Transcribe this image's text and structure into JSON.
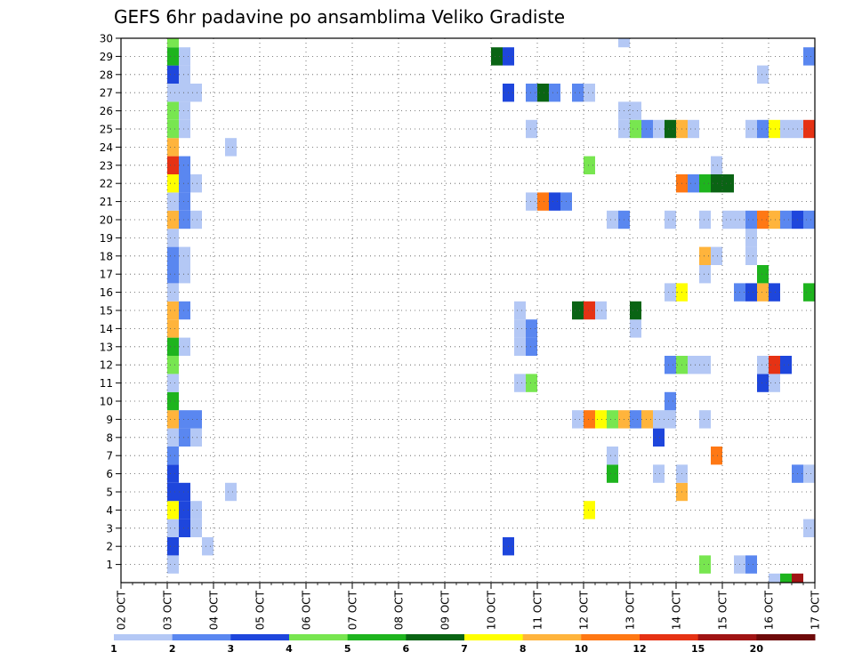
{
  "chart_data": {
    "type": "heatmap",
    "title": "GEFS 6hr padavine po ansamblima Veliko Gradiste",
    "x_ticks": [
      "02 OCT",
      "03 OCT",
      "04 OCT",
      "05 OCT",
      "06 OCT",
      "07 OCT",
      "08 OCT",
      "09 OCT",
      "10 OCT",
      "11 OCT",
      "12 OCT",
      "13 OCT",
      "14 OCT",
      "15 OCT",
      "16 OCT",
      "17 OCT"
    ],
    "y_ticks": [
      "1",
      "2",
      "3",
      "4",
      "5",
      "6",
      "7",
      "8",
      "9",
      "10",
      "11",
      "12",
      "13",
      "14",
      "15",
      "16",
      "17",
      "18",
      "19",
      "20",
      "21",
      "22",
      "23",
      "24",
      "25",
      "26",
      "27",
      "28",
      "29",
      "30"
    ],
    "xlim": [
      "02 OCT 00Z",
      "17 OCT 00Z"
    ],
    "ylim": [
      0,
      30
    ],
    "grid": true,
    "colorbar": {
      "labels": [
        "1",
        "2",
        "3",
        "4",
        "5",
        "6",
        "7",
        "8",
        "10",
        "12",
        "15",
        "20"
      ],
      "colors": [
        "#b4c8f5",
        "#5a87f0",
        "#1e46dc",
        "#78e650",
        "#1eb41e",
        "#0a6414",
        "#ffff00",
        "#ffb43c",
        "#ff7814",
        "#e63214",
        "#a01414",
        "#6e0a0a"
      ]
    },
    "cells": [
      {
        "day": "03",
        "h": 0,
        "m": 0,
        "c": 0
      },
      {
        "day": "03",
        "h": 0,
        "m": 1,
        "c": 2
      },
      {
        "day": "03",
        "h": 0,
        "m": 2,
        "c": 0
      },
      {
        "day": "03",
        "h": 0,
        "m": 3,
        "c": 6
      },
      {
        "day": "03",
        "h": 0,
        "m": 4,
        "c": 2
      },
      {
        "day": "03",
        "h": 0,
        "m": 5,
        "c": 2
      },
      {
        "day": "03",
        "h": 0,
        "m": 6,
        "c": 1
      },
      {
        "day": "03",
        "h": 0,
        "m": 7,
        "c": 0
      },
      {
        "day": "03",
        "h": 0,
        "m": 8,
        "c": 7
      },
      {
        "day": "03",
        "h": 0,
        "m": 9,
        "c": 4
      },
      {
        "day": "03",
        "h": 0,
        "m": 10,
        "c": 0
      },
      {
        "day": "03",
        "h": 0,
        "m": 11,
        "c": 3
      },
      {
        "day": "03",
        "h": 0,
        "m": 12,
        "c": 4
      },
      {
        "day": "03",
        "h": 0,
        "m": 13,
        "c": 7
      },
      {
        "day": "03",
        "h": 0,
        "m": 14,
        "c": 7
      },
      {
        "day": "03",
        "h": 0,
        "m": 15,
        "c": 0
      },
      {
        "day": "03",
        "h": 0,
        "m": 16,
        "c": 1
      },
      {
        "day": "03",
        "h": 0,
        "m": 17,
        "c": 1
      },
      {
        "day": "03",
        "h": 0,
        "m": 18,
        "c": 0
      },
      {
        "day": "03",
        "h": 0,
        "m": 19,
        "c": 7
      },
      {
        "day": "03",
        "h": 0,
        "m": 20,
        "c": 0
      },
      {
        "day": "03",
        "h": 0,
        "m": 21,
        "c": 6
      },
      {
        "day": "03",
        "h": 0,
        "m": 22,
        "c": 9
      },
      {
        "day": "03",
        "h": 0,
        "m": 23,
        "c": 7
      },
      {
        "day": "03",
        "h": 0,
        "m": 24,
        "c": 3
      },
      {
        "day": "03",
        "h": 0,
        "m": 25,
        "c": 3
      },
      {
        "day": "03",
        "h": 0,
        "m": 26,
        "c": 0
      },
      {
        "day": "03",
        "h": 0,
        "m": 27,
        "c": 2
      },
      {
        "day": "03",
        "h": 0,
        "m": 28,
        "c": 4
      },
      {
        "day": "03",
        "h": 0,
        "m": 29,
        "c": 3
      },
      {
        "day": "03",
        "h": 6,
        "m": 2,
        "c": 2
      },
      {
        "day": "03",
        "h": 6,
        "m": 3,
        "c": 2
      },
      {
        "day": "03",
        "h": 6,
        "m": 4,
        "c": 2
      },
      {
        "day": "03",
        "h": 6,
        "m": 7,
        "c": 1
      },
      {
        "day": "03",
        "h": 6,
        "m": 8,
        "c": 1
      },
      {
        "day": "03",
        "h": 6,
        "m": 12,
        "c": 0
      },
      {
        "day": "03",
        "h": 6,
        "m": 14,
        "c": 1
      },
      {
        "day": "03",
        "h": 6,
        "m": 16,
        "c": 0
      },
      {
        "day": "03",
        "h": 6,
        "m": 17,
        "c": 0
      },
      {
        "day": "03",
        "h": 6,
        "m": 19,
        "c": 1
      },
      {
        "day": "03",
        "h": 6,
        "m": 20,
        "c": 1
      },
      {
        "day": "03",
        "h": 6,
        "m": 21,
        "c": 1
      },
      {
        "day": "03",
        "h": 6,
        "m": 22,
        "c": 1
      },
      {
        "day": "03",
        "h": 6,
        "m": 24,
        "c": 0
      },
      {
        "day": "03",
        "h": 6,
        "m": 25,
        "c": 0
      },
      {
        "day": "03",
        "h": 6,
        "m": 26,
        "c": 0
      },
      {
        "day": "03",
        "h": 6,
        "m": 27,
        "c": 0
      },
      {
        "day": "03",
        "h": 6,
        "m": 28,
        "c": 0
      },
      {
        "day": "03",
        "h": 12,
        "m": 2,
        "c": 0
      },
      {
        "day": "03",
        "h": 12,
        "m": 3,
        "c": 0
      },
      {
        "day": "03",
        "h": 12,
        "m": 7,
        "c": 0
      },
      {
        "day": "03",
        "h": 12,
        "m": 8,
        "c": 1
      },
      {
        "day": "03",
        "h": 12,
        "m": 19,
        "c": 0
      },
      {
        "day": "03",
        "h": 12,
        "m": 21,
        "c": 0
      },
      {
        "day": "03",
        "h": 12,
        "m": 26,
        "c": 0
      },
      {
        "day": "03",
        "h": 18,
        "m": 1,
        "c": 0
      },
      {
        "day": "04",
        "h": 6,
        "m": 4,
        "c": 0
      },
      {
        "day": "04",
        "h": 6,
        "m": 23,
        "c": 0
      },
      {
        "day": "10",
        "h": 0,
        "m": 28,
        "c": 5
      },
      {
        "day": "10",
        "h": 6,
        "m": 1,
        "c": 2
      },
      {
        "day": "10",
        "h": 6,
        "m": 28,
        "c": 2
      },
      {
        "day": "10",
        "h": 6,
        "m": 26,
        "c": 2
      },
      {
        "day": "10",
        "h": 12,
        "m": 10,
        "c": 0
      },
      {
        "day": "10",
        "h": 12,
        "m": 12,
        "c": 0
      },
      {
        "day": "10",
        "h": 12,
        "m": 13,
        "c": 0
      },
      {
        "day": "10",
        "h": 12,
        "m": 14,
        "c": 0
      },
      {
        "day": "10",
        "h": 18,
        "m": 10,
        "c": 3
      },
      {
        "day": "10",
        "h": 18,
        "m": 12,
        "c": 1
      },
      {
        "day": "10",
        "h": 18,
        "m": 13,
        "c": 1
      },
      {
        "day": "10",
        "h": 18,
        "m": 20,
        "c": 0
      },
      {
        "day": "10",
        "h": 18,
        "m": 24,
        "c": 0
      },
      {
        "day": "10",
        "h": 18,
        "m": 26,
        "c": 1
      },
      {
        "day": "11",
        "h": 0,
        "m": 20,
        "c": 8
      },
      {
        "day": "11",
        "h": 0,
        "m": 26,
        "c": 5
      },
      {
        "day": "11",
        "h": 6,
        "m": 20,
        "c": 2
      },
      {
        "day": "11",
        "h": 6,
        "m": 26,
        "c": 1
      },
      {
        "day": "11",
        "h": 12,
        "m": 20,
        "c": 1
      },
      {
        "day": "11",
        "h": 18,
        "m": 14,
        "c": 5
      },
      {
        "day": "11",
        "h": 18,
        "m": 26,
        "c": 1
      },
      {
        "day": "12",
        "h": 0,
        "m": 3,
        "c": 6
      },
      {
        "day": "12",
        "h": 0,
        "m": 8,
        "c": 8
      },
      {
        "day": "12",
        "h": 0,
        "m": 14,
        "c": 9
      },
      {
        "day": "12",
        "h": 0,
        "m": 22,
        "c": 3
      },
      {
        "day": "12",
        "h": 0,
        "m": 26,
        "c": 0
      },
      {
        "day": "11",
        "h": 18,
        "m": 8,
        "c": 0
      },
      {
        "day": "12",
        "h": 6,
        "m": 8,
        "c": 6
      },
      {
        "day": "12",
        "h": 6,
        "m": 14,
        "c": 0
      },
      {
        "day": "12",
        "h": 12,
        "m": 5,
        "c": 4
      },
      {
        "day": "12",
        "h": 12,
        "m": 6,
        "c": 0
      },
      {
        "day": "12",
        "h": 12,
        "m": 8,
        "c": 3
      },
      {
        "day": "12",
        "h": 12,
        "m": 19,
        "c": 0
      },
      {
        "day": "12",
        "h": 18,
        "m": 8,
        "c": 7
      },
      {
        "day": "12",
        "h": 18,
        "m": 19,
        "c": 1
      },
      {
        "day": "12",
        "h": 18,
        "m": 29,
        "c": 0
      },
      {
        "day": "13",
        "h": 0,
        "m": 8,
        "c": 1
      },
      {
        "day": "13",
        "h": 0,
        "m": 13,
        "c": 0
      },
      {
        "day": "13",
        "h": 0,
        "m": 14,
        "c": 5
      },
      {
        "day": "13",
        "h": 0,
        "m": 24,
        "c": 3
      },
      {
        "day": "13",
        "h": 0,
        "m": 25,
        "c": 0
      },
      {
        "day": "12",
        "h": 18,
        "m": 24,
        "c": 0
      },
      {
        "day": "12",
        "h": 18,
        "m": 25,
        "c": 0
      },
      {
        "day": "13",
        "h": 6,
        "m": 8,
        "c": 7
      },
      {
        "day": "13",
        "h": 6,
        "m": 24,
        "c": 1
      },
      {
        "day": "13",
        "h": 12,
        "m": 5,
        "c": 0
      },
      {
        "day": "13",
        "h": 12,
        "m": 7,
        "c": 2
      },
      {
        "day": "13",
        "h": 12,
        "m": 8,
        "c": 0
      },
      {
        "day": "13",
        "h": 12,
        "m": 24,
        "c": 0
      },
      {
        "day": "13",
        "h": 18,
        "m": 8,
        "c": 0
      },
      {
        "day": "13",
        "h": 18,
        "m": 9,
        "c": 1
      },
      {
        "day": "13",
        "h": 18,
        "m": 11,
        "c": 1
      },
      {
        "day": "13",
        "h": 18,
        "m": 15,
        "c": 0
      },
      {
        "day": "13",
        "h": 18,
        "m": 19,
        "c": 0
      },
      {
        "day": "13",
        "h": 18,
        "m": 24,
        "c": 5
      },
      {
        "day": "14",
        "h": 0,
        "m": 4,
        "c": 7
      },
      {
        "day": "14",
        "h": 0,
        "m": 5,
        "c": 0
      },
      {
        "day": "14",
        "h": 0,
        "m": 11,
        "c": 3
      },
      {
        "day": "14",
        "h": 0,
        "m": 15,
        "c": 6
      },
      {
        "day": "14",
        "h": 0,
        "m": 21,
        "c": 8
      },
      {
        "day": "14",
        "h": 0,
        "m": 24,
        "c": 7
      },
      {
        "day": "14",
        "h": 6,
        "m": 11,
        "c": 0
      },
      {
        "day": "14",
        "h": 6,
        "m": 21,
        "c": 1
      },
      {
        "day": "14",
        "h": 6,
        "m": 24,
        "c": 0
      },
      {
        "day": "14",
        "h": 12,
        "m": 0,
        "c": 3
      },
      {
        "day": "14",
        "h": 12,
        "m": 8,
        "c": 0
      },
      {
        "day": "14",
        "h": 12,
        "m": 11,
        "c": 0
      },
      {
        "day": "14",
        "h": 12,
        "m": 16,
        "c": 0
      },
      {
        "day": "14",
        "h": 12,
        "m": 17,
        "c": 7
      },
      {
        "day": "14",
        "h": 12,
        "m": 19,
        "c": 0
      },
      {
        "day": "14",
        "h": 12,
        "m": 21,
        "c": 4
      },
      {
        "day": "14",
        "h": 18,
        "m": 6,
        "c": 8
      },
      {
        "day": "14",
        "h": 18,
        "m": 17,
        "c": 0
      },
      {
        "day": "14",
        "h": 18,
        "m": 21,
        "c": 5
      },
      {
        "day": "14",
        "h": 18,
        "m": 22,
        "c": 0
      },
      {
        "day": "15",
        "h": 0,
        "m": 19,
        "c": 0
      },
      {
        "day": "15",
        "h": 0,
        "m": 21,
        "c": 5
      },
      {
        "day": "15",
        "h": 6,
        "m": 0,
        "c": 0
      },
      {
        "day": "15",
        "h": 6,
        "m": 15,
        "c": 1
      },
      {
        "day": "15",
        "h": 6,
        "m": 19,
        "c": 0
      },
      {
        "day": "15",
        "h": 12,
        "m": 0,
        "c": 1
      },
      {
        "day": "15",
        "h": 12,
        "m": 15,
        "c": 2
      },
      {
        "day": "15",
        "h": 12,
        "m": 17,
        "c": 0
      },
      {
        "day": "15",
        "h": 12,
        "m": 18,
        "c": 0
      },
      {
        "day": "15",
        "h": 12,
        "m": 19,
        "c": 1
      },
      {
        "day": "15",
        "h": 12,
        "m": 24,
        "c": 0
      },
      {
        "day": "15",
        "h": 18,
        "m": 10,
        "c": 2
      },
      {
        "day": "15",
        "h": 18,
        "m": 11,
        "c": 0
      },
      {
        "day": "15",
        "h": 18,
        "m": 15,
        "c": 7
      },
      {
        "day": "15",
        "h": 18,
        "m": 16,
        "c": 4
      },
      {
        "day": "15",
        "h": 18,
        "m": 19,
        "c": 8
      },
      {
        "day": "15",
        "h": 18,
        "m": 24,
        "c": 1
      },
      {
        "day": "15",
        "h": 18,
        "m": 27,
        "c": 0
      },
      {
        "day": "16",
        "h": 0,
        "m": 10,
        "c": 0
      },
      {
        "day": "16",
        "h": 0,
        "m": 11,
        "c": 9
      },
      {
        "day": "16",
        "h": 0,
        "m": 15,
        "c": 2
      },
      {
        "day": "16",
        "h": 0,
        "m": 24,
        "c": 6
      },
      {
        "day": "16",
        "h": 0,
        "m": 19,
        "c": 7
      },
      {
        "day": "16",
        "h": 6,
        "m": 11,
        "c": 2
      },
      {
        "day": "16",
        "h": 6,
        "m": 24,
        "c": 0
      },
      {
        "day": "16",
        "h": 6,
        "m": 19,
        "c": 1
      },
      {
        "day": "16",
        "h": 12,
        "m": 5,
        "c": 1
      },
      {
        "day": "16",
        "h": 12,
        "m": 24,
        "c": 0
      },
      {
        "day": "16",
        "h": 12,
        "m": 19,
        "c": 2
      },
      {
        "day": "16",
        "h": 18,
        "m": 2,
        "c": 0
      },
      {
        "day": "16",
        "h": 18,
        "m": 5,
        "c": 0
      },
      {
        "day": "16",
        "h": 18,
        "m": 15,
        "c": 4
      },
      {
        "day": "16",
        "h": 18,
        "m": 24,
        "c": 9
      },
      {
        "day": "16",
        "h": 18,
        "m": 28,
        "c": 1
      },
      {
        "day": "16",
        "h": 18,
        "m": 19,
        "c": 1
      }
    ],
    "bottom_strip": [
      {
        "day": "16",
        "h": 0,
        "c": 0
      },
      {
        "day": "16",
        "h": 6,
        "c": 4
      },
      {
        "day": "16",
        "h": 12,
        "c": 10
      }
    ]
  }
}
